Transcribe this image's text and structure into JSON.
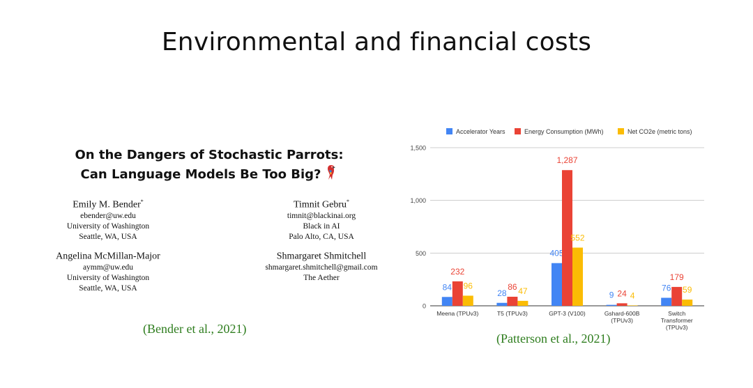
{
  "slide": {
    "title": "Environmental and financial costs"
  },
  "paper": {
    "title_line1": "On the Dangers of Stochastic Parrots:",
    "title_line2": "Can Language Models Be Too Big?",
    "parrot_icon": "parrot-emoji",
    "authors": [
      {
        "name": "Emily M. Bender",
        "mark": "*",
        "email": "ebender@uw.edu",
        "affil": "University of Washington",
        "location": "Seattle, WA, USA"
      },
      {
        "name": "Timnit Gebru",
        "mark": "*",
        "email": "timnit@blackinai.org",
        "affil": "Black in AI",
        "location": "Palo Alto, CA, USA"
      },
      {
        "name": "Angelina McMillan-Major",
        "mark": "",
        "email": "aymm@uw.edu",
        "affil": "University of Washington",
        "location": "Seattle, WA, USA"
      },
      {
        "name": "Shmargaret Shmitchell",
        "mark": "",
        "email": "shmargaret.shmitchell@gmail.com",
        "affil": "The Aether",
        "location": ""
      }
    ],
    "citation": "(Bender et al., 2021)"
  },
  "chart_citation": "(Patterson et al., 2021)",
  "chart_data": {
    "type": "bar",
    "title": "",
    "xlabel": "",
    "ylabel": "",
    "ylim": [
      0,
      1500
    ],
    "yticks": [
      0,
      500,
      1000,
      1500
    ],
    "ytick_labels": [
      "0",
      "500",
      "1,000",
      "1,500"
    ],
    "grid": true,
    "legend_position": "top",
    "categories": [
      [
        "Meena (TPUv3)"
      ],
      [
        "T5 (TPUv3)"
      ],
      [
        "GPT-3 (V100)"
      ],
      [
        "Gshard-600B",
        "(TPUv3)"
      ],
      [
        "Switch",
        "Transformer",
        "(TPUv3)"
      ]
    ],
    "series": [
      {
        "name": "Accelerator Years",
        "color": "#4285f4",
        "values": [
          84,
          28,
          405,
          9,
          76
        ],
        "labels": [
          "84",
          "28",
          "405",
          "9",
          "76"
        ]
      },
      {
        "name": "Energy Consumption (MWh)",
        "color": "#ea4335",
        "values": [
          232,
          86,
          1287,
          24,
          179
        ],
        "labels": [
          "232",
          "86",
          "1,287",
          "24",
          "179"
        ]
      },
      {
        "name": "Net CO2e (metric tons)",
        "color": "#fbbc04",
        "values": [
          96,
          47,
          552,
          4,
          59
        ],
        "labels": [
          "96",
          "47",
          "552",
          "4",
          "59"
        ]
      }
    ]
  }
}
